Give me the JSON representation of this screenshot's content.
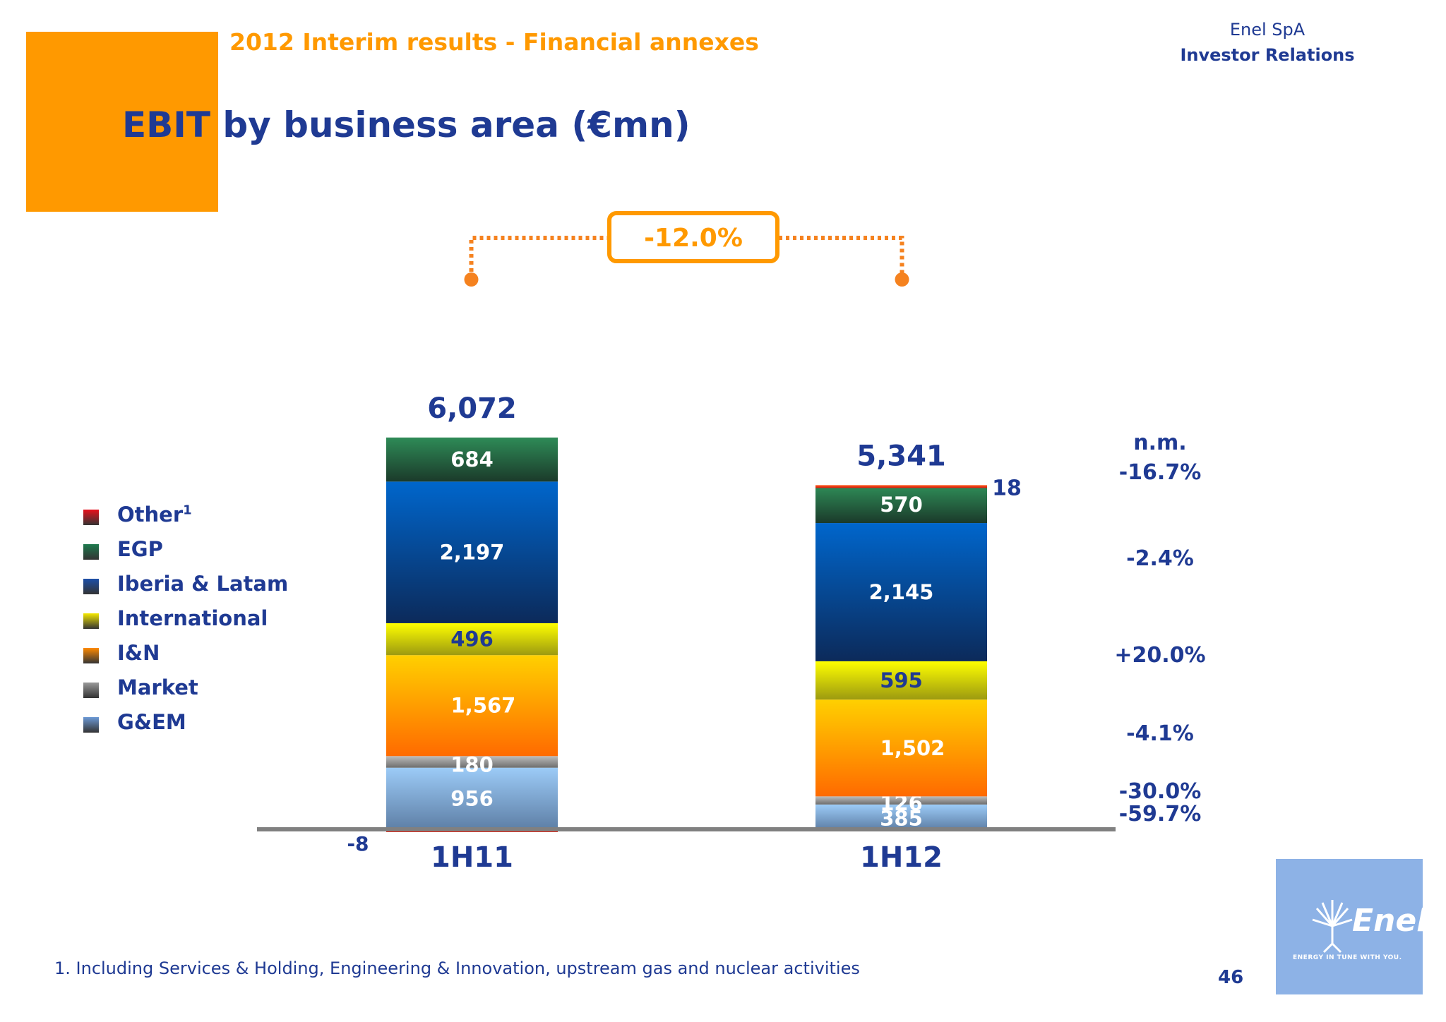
{
  "header": {
    "kicker": "2012 Interim results - Financial annexes",
    "company": "Enel SpA",
    "department": "Investor Relations",
    "title": "EBIT by business area (€mn)"
  },
  "colors": {
    "brand_orange": "#FF9900",
    "brand_blue": "#1F3A93",
    "change_badge": "#F5821F"
  },
  "legend": [
    {
      "label": "Other",
      "sup": "1",
      "color": "#E8101B"
    },
    {
      "label": "EGP",
      "sup": "",
      "color": "#1E7A4E"
    },
    {
      "label": "Iberia & Latam",
      "sup": "",
      "color": "#1C4FA8"
    },
    {
      "label": "International",
      "sup": "",
      "color": "#F5E800"
    },
    {
      "label": "I&N",
      "sup": "",
      "color": "#FF8A00"
    },
    {
      "label": "Market",
      "sup": "",
      "color": "#9A9A9A"
    },
    {
      "label": "G&EM",
      "sup": "",
      "color": "#6C9AD6"
    }
  ],
  "chart_data": {
    "type": "bar",
    "stacked": true,
    "categories": [
      "1H11",
      "1H12"
    ],
    "totals": [
      "6,072",
      "5,341"
    ],
    "total_values": [
      6072,
      5341
    ],
    "change_label": "-12.0%",
    "series": [
      {
        "name": "G&EM",
        "values": [
          956,
          385
        ],
        "labels": [
          "956",
          "385"
        ],
        "change": "-59.7%"
      },
      {
        "name": "Market",
        "values": [
          180,
          126
        ],
        "labels": [
          "180",
          "126"
        ],
        "change": "-30.0%"
      },
      {
        "name": "I&N",
        "values": [
          1567,
          1502
        ],
        "labels": [
          "1,567",
          "1,502"
        ],
        "change": "-4.1%"
      },
      {
        "name": "International",
        "values": [
          496,
          595
        ],
        "labels": [
          "496",
          "595"
        ],
        "change": "+20.0%"
      },
      {
        "name": "Iberia & Latam",
        "values": [
          2197,
          2145
        ],
        "labels": [
          "2,197",
          "2,145"
        ],
        "change": "-2.4%"
      },
      {
        "name": "EGP",
        "values": [
          684,
          570
        ],
        "labels": [
          "684",
          "570"
        ],
        "change": "-16.7%"
      },
      {
        "name": "Other",
        "values": [
          -8,
          18
        ],
        "labels": [
          "-8",
          "18"
        ],
        "change": "n.m."
      }
    ]
  },
  "logo": {
    "word": "Enel",
    "tagline": "ENERGY IN TUNE WITH YOU."
  },
  "footnote": "1. Including Services & Holding, Engineering & Innovation, upstream gas and nuclear activities",
  "page_number": "46"
}
